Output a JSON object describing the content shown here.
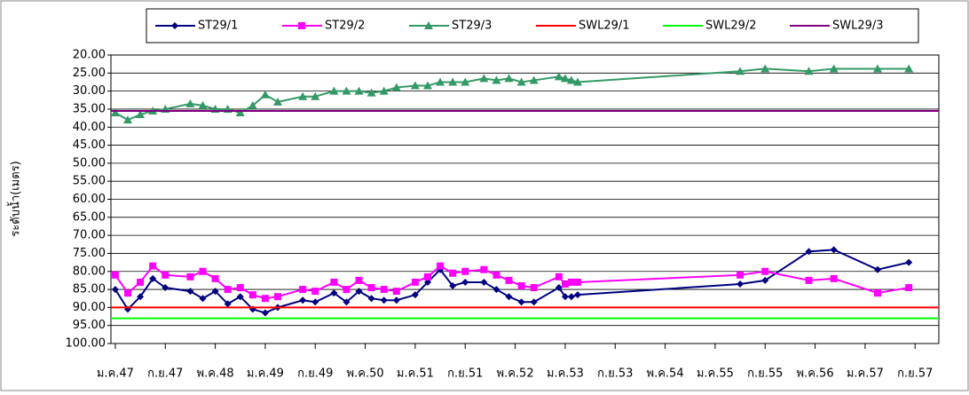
{
  "chart_data": {
    "type": "line",
    "y_label": "ระดับน้ำ(เมตร)",
    "x": [
      0,
      2,
      4,
      6,
      8,
      12,
      14,
      16,
      18,
      20,
      22,
      24,
      26,
      30,
      32,
      35,
      37,
      39,
      41,
      43,
      45,
      48,
      50,
      52,
      54,
      56,
      59,
      61,
      63,
      65,
      67,
      71,
      72,
      73,
      74,
      100,
      104,
      111,
      115,
      122,
      127
    ],
    "series": [
      {
        "name": "ST29/1",
        "color": "#000080",
        "marker": "diamond",
        "values": [
          85,
          90.5,
          87,
          82,
          84.5,
          85.5,
          87.5,
          85.5,
          89,
          87,
          90.5,
          91.5,
          90,
          88,
          88.5,
          86,
          88.5,
          85.5,
          87.5,
          88,
          88,
          86.5,
          83,
          79.5,
          84,
          83,
          83,
          85,
          87,
          88.5,
          88.5,
          84.5,
          87,
          87,
          86.5,
          83.5,
          82.5,
          74.5,
          74,
          79.5,
          77.5
        ]
      },
      {
        "name": "ST29/2",
        "color": "#ff00ff",
        "marker": "square",
        "values": [
          81,
          86,
          83,
          78.5,
          81,
          81.5,
          80,
          82,
          85,
          84.5,
          86.5,
          87.5,
          87,
          85,
          85.5,
          83,
          85,
          82.5,
          84.5,
          85,
          85.5,
          83,
          81.5,
          78.5,
          80.5,
          80,
          79.5,
          81,
          82.5,
          84,
          84.5,
          81.5,
          83.5,
          83,
          83,
          81,
          80,
          82.5,
          82,
          86,
          84.5
        ]
      },
      {
        "name": "ST29/3",
        "color": "#339966",
        "marker": "triangle",
        "values": [
          36,
          38,
          36.5,
          35.5,
          35,
          33.5,
          34,
          35,
          35,
          36,
          34,
          31,
          33,
          31.5,
          31.5,
          30,
          30,
          30,
          30.5,
          30,
          29,
          28.5,
          28.5,
          27.5,
          27.5,
          27.5,
          26.5,
          27,
          26.5,
          27.5,
          27,
          26,
          26.5,
          27,
          27.5,
          24.5,
          23.8,
          24.5,
          23.8,
          23.8,
          23.8
        ]
      },
      {
        "name": "SWL29/1",
        "color": "#ff0000",
        "value": 90
      },
      {
        "name": "SWL29/2",
        "color": "#00ff00",
        "value": 93
      },
      {
        "name": "SWL29/3",
        "color": "#800080",
        "value": 35.5
      }
    ],
    "ylim": [
      20,
      100
    ],
    "invert_y": true,
    "yticks": [
      {
        "value": 20,
        "label": "20.00"
      },
      {
        "value": 25,
        "label": "25.00"
      },
      {
        "value": 30,
        "label": "30.00"
      },
      {
        "value": 35,
        "label": "35.00"
      },
      {
        "value": 40,
        "label": "40.00"
      },
      {
        "value": 45,
        "label": "45.00"
      },
      {
        "value": 50,
        "label": "50.00"
      },
      {
        "value": 55,
        "label": "55.00"
      },
      {
        "value": 60,
        "label": "60.00"
      },
      {
        "value": 65,
        "label": "65.00"
      },
      {
        "value": 70,
        "label": "70.00"
      },
      {
        "value": 75,
        "label": "75.00"
      },
      {
        "value": 80,
        "label": "80.00"
      },
      {
        "value": 85,
        "label": "85.00"
      },
      {
        "value": 90,
        "label": "90.00"
      },
      {
        "value": 95,
        "label": "95.00"
      },
      {
        "value": 100,
        "label": "100.00"
      }
    ],
    "xlim": [
      -0.7,
      131.8
    ],
    "xticks": [
      {
        "value": 0,
        "label": "ม.ค.47"
      },
      {
        "value": 8,
        "label": "ก.ย.47"
      },
      {
        "value": 16,
        "label": "พ.ค.48"
      },
      {
        "value": 24,
        "label": "ม.ค.49"
      },
      {
        "value": 32,
        "label": "ก.ย.49"
      },
      {
        "value": 40,
        "label": "พ.ค.50"
      },
      {
        "value": 48,
        "label": "ม.ค.51"
      },
      {
        "value": 56,
        "label": "ก.ย.51"
      },
      {
        "value": 64,
        "label": "พ.ค.52"
      },
      {
        "value": 72,
        "label": "ม.ค.53"
      },
      {
        "value": 80,
        "label": "ก.ย.53"
      },
      {
        "value": 88,
        "label": "พ.ค.54"
      },
      {
        "value": 96,
        "label": "ม.ค.55"
      },
      {
        "value": 104,
        "label": "ก.ย.55"
      },
      {
        "value": 112,
        "label": "พ.ค.56"
      },
      {
        "value": 120,
        "label": "ม.ค.57"
      },
      {
        "value": 128,
        "label": "ก.ย.57"
      }
    ],
    "grid": true,
    "legend": "top"
  }
}
